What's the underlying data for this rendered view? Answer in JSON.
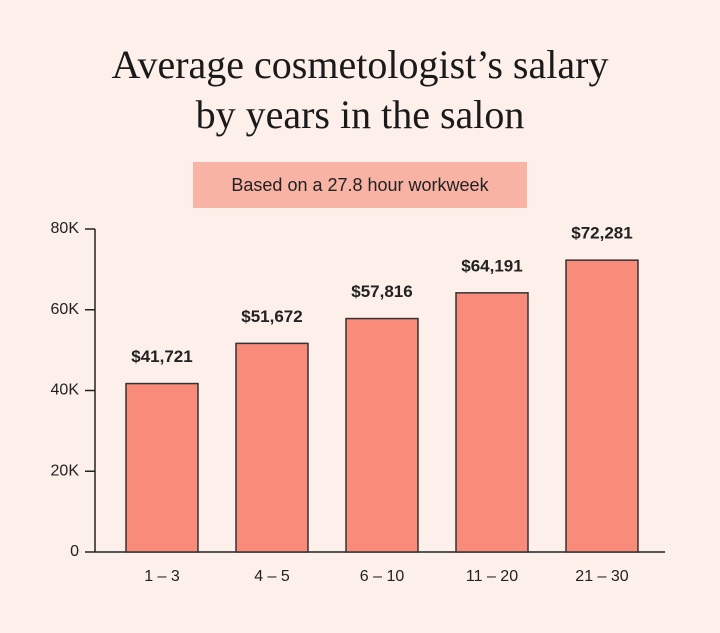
{
  "chart_data": {
    "type": "bar",
    "title": "Average cosmetologist’s salary by years in the salon",
    "subtitle": "Based on a 27.8 hour workweek",
    "categories": [
      "1 – 3",
      "4 – 5",
      "6 – 10",
      "11 – 20",
      "21 – 30"
    ],
    "values": [
      41721,
      51672,
      57816,
      64191,
      72281
    ],
    "value_labels": [
      "$41,721",
      "$51,672",
      "$57,816",
      "$64,191",
      "$72,281"
    ],
    "color": "#f98b7b",
    "ylim": [
      0,
      80000
    ],
    "yticks": [
      0,
      {
        "value": 20000,
        "label": "20K"
      },
      {
        "value": 40000,
        "label": "40K"
      },
      {
        "value": 60000,
        "label": "60K"
      },
      {
        "value": 80000,
        "label": "80K"
      }
    ],
    "grid": false
  }
}
